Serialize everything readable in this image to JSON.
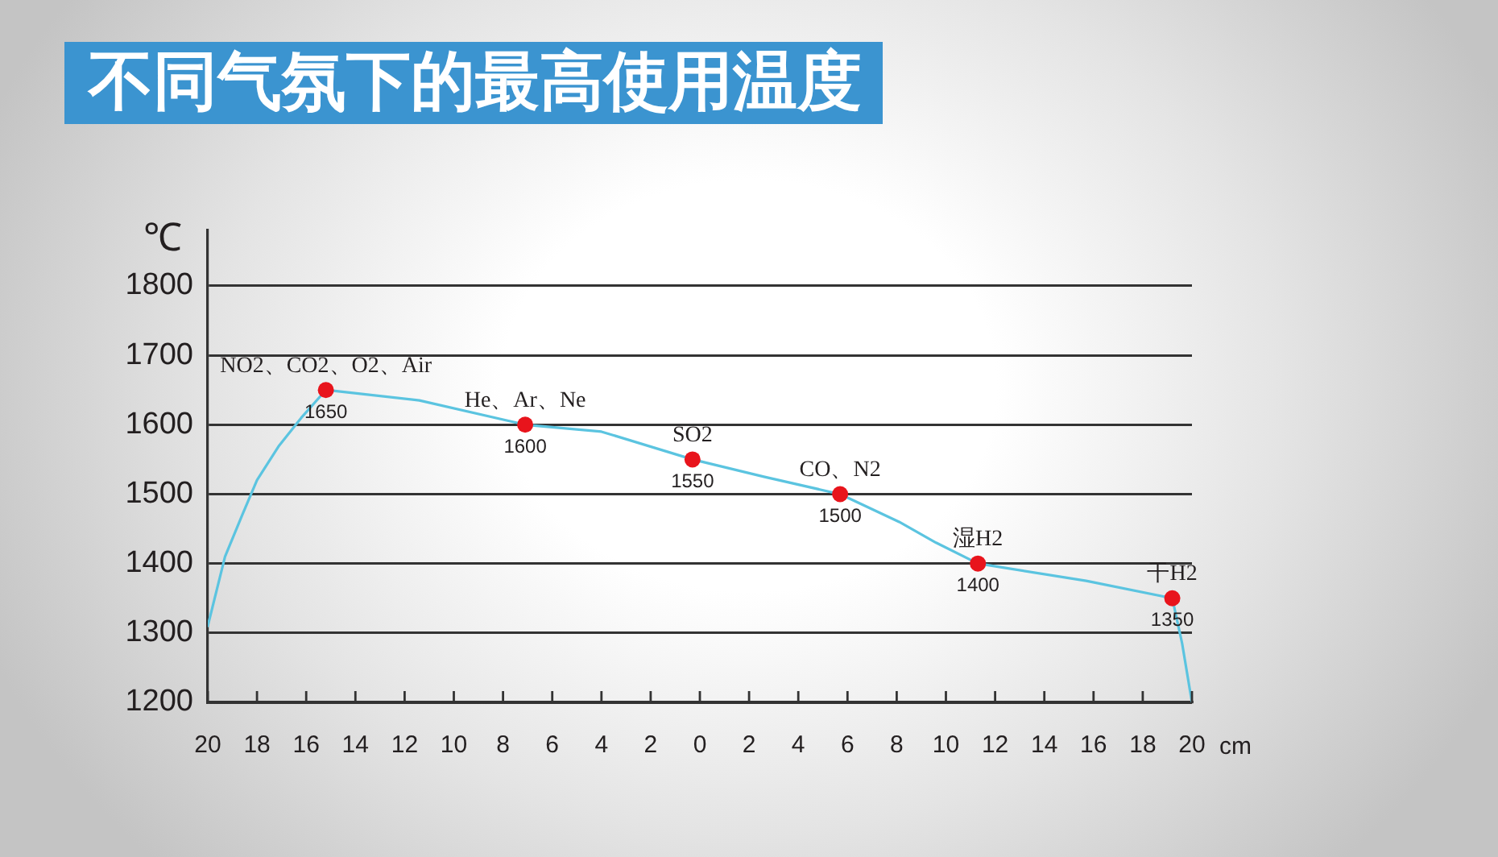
{
  "chart_data": {
    "type": "line",
    "title": "不同气氛下的最高使用温度",
    "xlabel": "cm",
    "ylabel": "℃",
    "xlim": [
      -20,
      20
    ],
    "ylim": [
      1200,
      1880
    ],
    "xticks": [
      {
        "value": -20,
        "label": "20"
      },
      {
        "value": -18,
        "label": "18"
      },
      {
        "value": -16,
        "label": "16"
      },
      {
        "value": -14,
        "label": "14"
      },
      {
        "value": -12,
        "label": "12"
      },
      {
        "value": -10,
        "label": "10"
      },
      {
        "value": -8,
        "label": "8"
      },
      {
        "value": -6,
        "label": "6"
      },
      {
        "value": -4,
        "label": "4"
      },
      {
        "value": -2,
        "label": "2"
      },
      0,
      2,
      4,
      6,
      8,
      10,
      12,
      14,
      16,
      18,
      20
    ],
    "yticks": [
      1200,
      1300,
      1400,
      1500,
      1600,
      1700,
      1800
    ],
    "grid": "y",
    "series": [
      {
        "color": "#5bc4e0",
        "marker": "none",
        "line_style": "solid",
        "x": [
          -20,
          -19.3,
          -18.6,
          -18,
          -17.1,
          -16.2,
          -15.2,
          -11.4,
          -7.1,
          -4,
          -0.3,
          2.6,
          5.7,
          8.1,
          9.6,
          11.3,
          15.7,
          19.2,
          19.6,
          20
        ],
        "values": [
          1310,
          1410,
          1470,
          1520,
          1570,
          1610,
          1650,
          1635,
          1600,
          1590,
          1550,
          1525,
          1500,
          1460,
          1430,
          1400,
          1375,
          1350,
          1285,
          1200
        ]
      },
      {
        "type": "scatter",
        "color": "#e8141c",
        "marker": "circle",
        "x": [
          -15.2,
          -7.1,
          -0.3,
          5.7,
          11.3,
          19.2
        ],
        "values": [
          1650,
          1600,
          1550,
          1500,
          1400,
          1350
        ],
        "value_labels": [
          "1650",
          "1600",
          "1550",
          "1500",
          "1400",
          "1350"
        ]
      }
    ],
    "annotations": [
      {
        "text": "NO2、CO2、O2、Air",
        "x": -15.2,
        "y": 1650
      },
      {
        "text": "He、Ar、Ne",
        "x": -7.1,
        "y": 1600
      },
      {
        "text": "SO2",
        "x": -0.3,
        "y": 1550
      },
      {
        "text": "CO、N2",
        "x": 5.7,
        "y": 1500
      },
      {
        "text": "湿H2",
        "x": 11.3,
        "y": 1400
      },
      {
        "text": "干H2",
        "x": 19.2,
        "y": 1350
      }
    ]
  }
}
